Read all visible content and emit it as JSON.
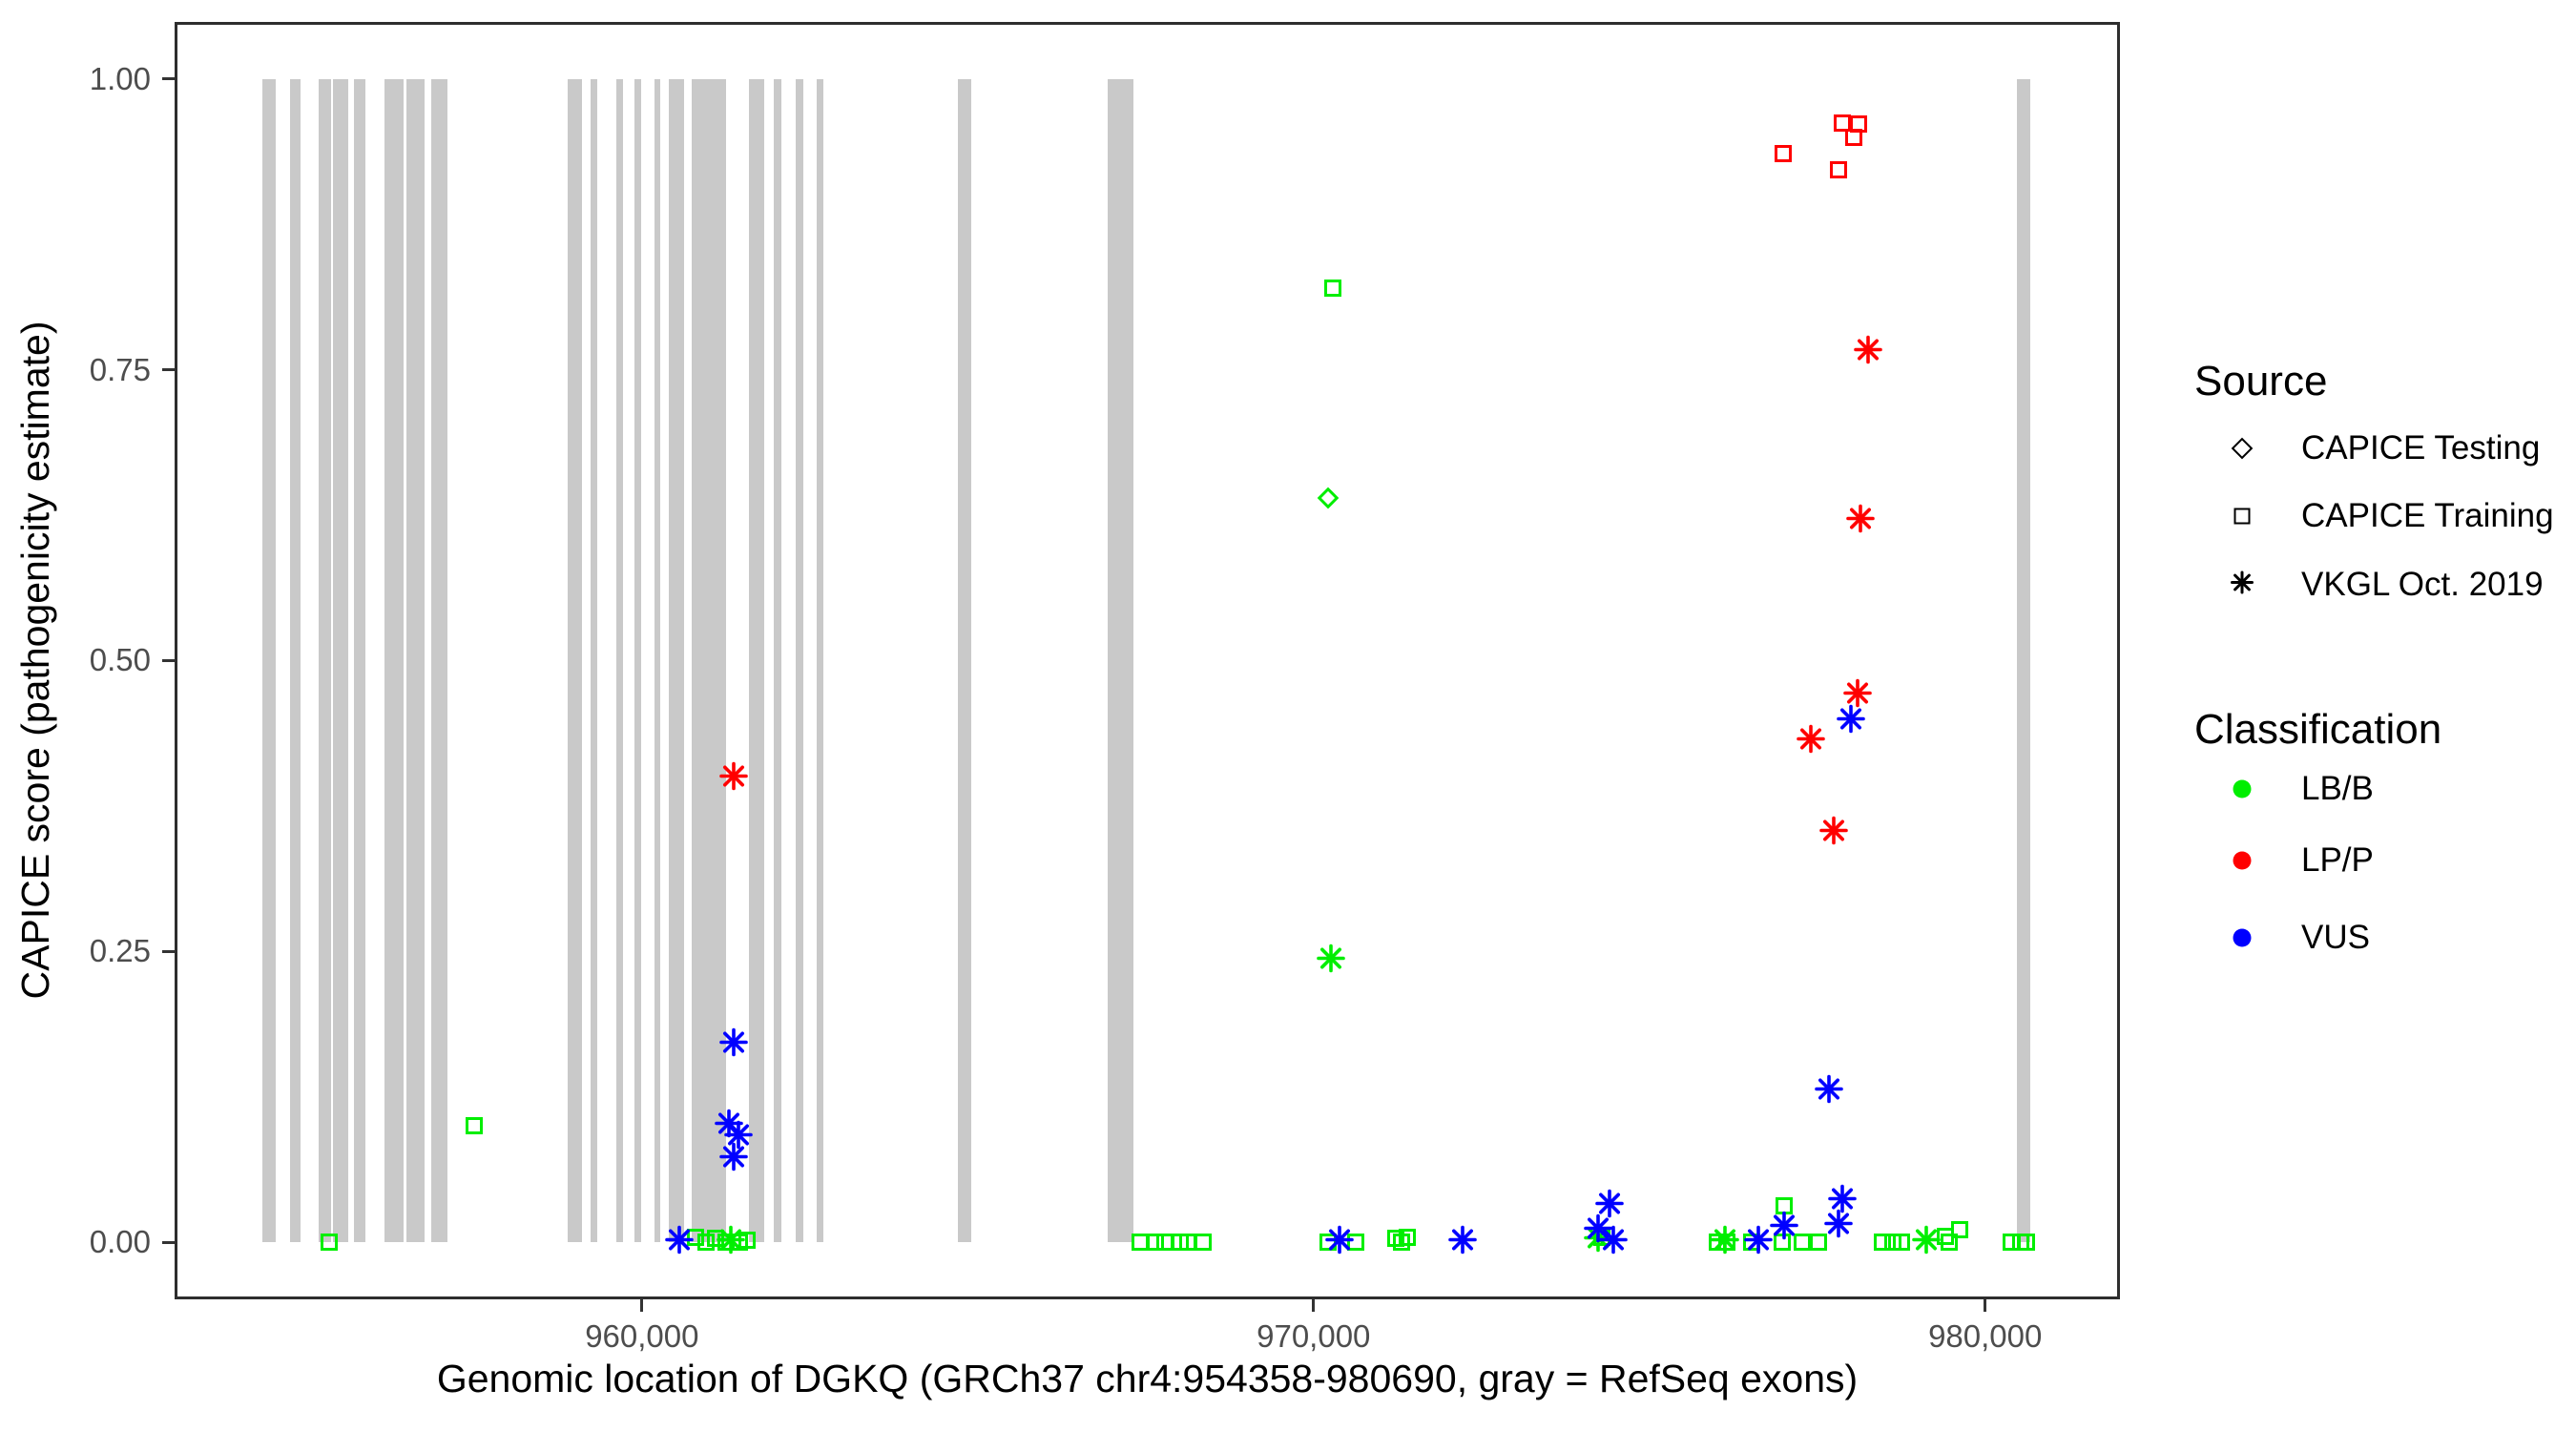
{
  "page": {
    "background": "#ffffff"
  },
  "colors": {
    "LB/B": "#00ee00",
    "LP/P": "#ff0000",
    "VUS": "#0000ff",
    "exon_gray": "#c9c9c9",
    "axis_line": "#2e2e2e",
    "tick_label": "#4d4d4d"
  },
  "legend": {
    "source": {
      "title": "Source",
      "items": [
        {
          "shape": "diamond",
          "label": "CAPICE Testing"
        },
        {
          "shape": "square",
          "label": "CAPICE Training"
        },
        {
          "shape": "asterisk",
          "label": "VKGL Oct. 2019"
        }
      ]
    },
    "classification": {
      "title": "Classification",
      "items": [
        {
          "label": "LB/B",
          "color": "#00ee00"
        },
        {
          "label": "LP/P",
          "color": "#ff0000"
        },
        {
          "label": "VUS",
          "color": "#0000ff"
        }
      ]
    }
  },
  "chart_data": {
    "type": "scatter",
    "title": "",
    "xlabel": "Genomic location of DGKQ (GRCh37 chr4:954358-980690, gray = RefSeq exons)",
    "ylabel": "CAPICE score (pathogenicity estimate)",
    "grid": false,
    "legend_position": "right",
    "x_domain": [
      953041,
      982007
    ],
    "y_domain": [
      -0.0492,
      1.0491
    ],
    "x_ticks": [
      {
        "value": 960000,
        "label": "960,000"
      },
      {
        "value": 970000,
        "label": "970,000"
      },
      {
        "value": 980000,
        "label": "980,000"
      }
    ],
    "y_ticks": [
      {
        "value": 0.0,
        "label": "0.00"
      },
      {
        "value": 0.25,
        "label": "0.25"
      },
      {
        "value": 0.5,
        "label": "0.50"
      },
      {
        "value": 0.75,
        "label": "0.75"
      },
      {
        "value": 1.0,
        "label": "1.00"
      }
    ],
    "exon_bars_bp": [
      [
        954350,
        954550
      ],
      [
        954760,
        954910
      ],
      [
        955180,
        955370
      ],
      [
        955400,
        955620
      ],
      [
        955710,
        955880
      ],
      [
        956160,
        956450
      ],
      [
        956500,
        956770
      ],
      [
        956860,
        957110
      ],
      [
        958900,
        959110
      ],
      [
        959230,
        959340
      ],
      [
        959620,
        959720
      ],
      [
        959890,
        959990
      ],
      [
        960180,
        960270
      ],
      [
        960400,
        960630
      ],
      [
        960740,
        961250
      ],
      [
        961590,
        961820
      ],
      [
        961960,
        962080
      ],
      [
        962290,
        962400
      ],
      [
        962600,
        962700
      ],
      [
        964710,
        964900
      ],
      [
        966940,
        967320
      ],
      [
        980470,
        980670
      ]
    ],
    "points": [
      {
        "bp": 955340,
        "score": 0.0,
        "source": "CAPICE Training",
        "classification": "LB/B"
      },
      {
        "bp": 957500,
        "score": 0.1,
        "source": "CAPICE Training",
        "classification": "LB/B"
      },
      {
        "bp": 960800,
        "score": 0.004,
        "source": "CAPICE Training",
        "classification": "LB/B"
      },
      {
        "bp": 960950,
        "score": 0.0,
        "source": "CAPICE Training",
        "classification": "LB/B"
      },
      {
        "bp": 961100,
        "score": 0.003,
        "source": "CAPICE Training",
        "classification": "LB/B"
      },
      {
        "bp": 961250,
        "score": 0.0,
        "source": "CAPICE Training",
        "classification": "LB/B"
      },
      {
        "bp": 961450,
        "score": 0.0,
        "source": "CAPICE Training",
        "classification": "LB/B"
      },
      {
        "bp": 961570,
        "score": 0.002,
        "source": "CAPICE Training",
        "classification": "LB/B"
      },
      {
        "bp": 961330,
        "score": 0.0,
        "source": "VKGL Oct. 2019",
        "classification": "LB/B"
      },
      {
        "bp": 967420,
        "score": 0.0,
        "source": "CAPICE Training",
        "classification": "LB/B"
      },
      {
        "bp": 967640,
        "score": 0.0,
        "source": "CAPICE Training",
        "classification": "LB/B"
      },
      {
        "bp": 967790,
        "score": 0.0,
        "source": "CAPICE Training",
        "classification": "LB/B"
      },
      {
        "bp": 968010,
        "score": 0.0,
        "source": "CAPICE Training",
        "classification": "LB/B"
      },
      {
        "bp": 968130,
        "score": 0.0,
        "source": "CAPICE Training",
        "classification": "LB/B"
      },
      {
        "bp": 968350,
        "score": 0.0,
        "source": "CAPICE Training",
        "classification": "LB/B"
      },
      {
        "bp": 970220,
        "score": 0.0,
        "source": "CAPICE Training",
        "classification": "LB/B"
      },
      {
        "bp": 970630,
        "score": 0.0,
        "source": "CAPICE Training",
        "classification": "LB/B"
      },
      {
        "bp": 970290,
        "score": 0.82,
        "source": "CAPICE Training",
        "classification": "LB/B"
      },
      {
        "bp": 970210,
        "score": 0.64,
        "source": "CAPICE Testing",
        "classification": "LB/B"
      },
      {
        "bp": 970260,
        "score": 0.242,
        "source": "VKGL Oct. 2019",
        "classification": "LB/B"
      },
      {
        "bp": 971230,
        "score": 0.003,
        "source": "CAPICE Training",
        "classification": "LB/B"
      },
      {
        "bp": 971310,
        "score": 0.0,
        "source": "CAPICE Training",
        "classification": "LB/B"
      },
      {
        "bp": 971390,
        "score": 0.004,
        "source": "CAPICE Training",
        "classification": "LB/B"
      },
      {
        "bp": 974230,
        "score": 0.002,
        "source": "VKGL Oct. 2019",
        "classification": "LB/B"
      },
      {
        "bp": 974300,
        "score": 0.004,
        "source": "CAPICE Training",
        "classification": "LB/B"
      },
      {
        "bp": 976010,
        "score": 0.0,
        "source": "CAPICE Training",
        "classification": "LB/B"
      },
      {
        "bp": 976160,
        "score": 0.0,
        "source": "CAPICE Training",
        "classification": "LB/B"
      },
      {
        "bp": 976120,
        "score": 0.0,
        "source": "VKGL Oct. 2019",
        "classification": "LB/B"
      },
      {
        "bp": 976520,
        "score": 0.0,
        "source": "CAPICE Training",
        "classification": "LB/B"
      },
      {
        "bp": 976980,
        "score": 0.0,
        "source": "CAPICE Training",
        "classification": "LB/B"
      },
      {
        "bp": 977010,
        "score": 0.031,
        "source": "CAPICE Training",
        "classification": "LB/B"
      },
      {
        "bp": 977280,
        "score": 0.0,
        "source": "CAPICE Training",
        "classification": "LB/B"
      },
      {
        "bp": 977520,
        "score": 0.0,
        "source": "CAPICE Training",
        "classification": "LB/B"
      },
      {
        "bp": 978470,
        "score": 0.0,
        "source": "CAPICE Training",
        "classification": "LB/B"
      },
      {
        "bp": 978620,
        "score": 0.0,
        "source": "CAPICE Training",
        "classification": "LB/B"
      },
      {
        "bp": 978760,
        "score": 0.0,
        "source": "CAPICE Training",
        "classification": "LB/B"
      },
      {
        "bp": 979130,
        "score": 0.0,
        "source": "VKGL Oct. 2019",
        "classification": "LB/B"
      },
      {
        "bp": 979410,
        "score": 0.005,
        "source": "CAPICE Training",
        "classification": "LB/B"
      },
      {
        "bp": 979470,
        "score": 0.0,
        "source": "CAPICE Training",
        "classification": "LB/B"
      },
      {
        "bp": 979620,
        "score": 0.011,
        "source": "CAPICE Training",
        "classification": "LB/B"
      },
      {
        "bp": 980390,
        "score": 0.0,
        "source": "CAPICE Training",
        "classification": "LB/B"
      },
      {
        "bp": 980530,
        "score": 0.0,
        "source": "CAPICE Training",
        "classification": "LB/B"
      },
      {
        "bp": 980620,
        "score": 0.0,
        "source": "CAPICE Training",
        "classification": "LB/B"
      },
      {
        "bp": 976998,
        "score": 0.936,
        "source": "CAPICE Training",
        "classification": "LP/P"
      },
      {
        "bp": 977877,
        "score": 0.962,
        "source": "CAPICE Training",
        "classification": "LP/P"
      },
      {
        "bp": 978118,
        "score": 0.961,
        "source": "CAPICE Training",
        "classification": "LP/P"
      },
      {
        "bp": 978047,
        "score": 0.95,
        "source": "CAPICE Training",
        "classification": "LP/P"
      },
      {
        "bp": 977820,
        "score": 0.922,
        "source": "CAPICE Training",
        "classification": "LP/P"
      },
      {
        "bp": 961370,
        "score": 0.399,
        "source": "VKGL Oct. 2019",
        "classification": "LP/P"
      },
      {
        "bp": 978250,
        "score": 0.765,
        "source": "VKGL Oct. 2019",
        "classification": "LP/P"
      },
      {
        "bp": 978150,
        "score": 0.62,
        "source": "VKGL Oct. 2019",
        "classification": "LP/P"
      },
      {
        "bp": 978100,
        "score": 0.47,
        "source": "VKGL Oct. 2019",
        "classification": "LP/P"
      },
      {
        "bp": 977400,
        "score": 0.431,
        "source": "VKGL Oct. 2019",
        "classification": "LP/P"
      },
      {
        "bp": 977750,
        "score": 0.352,
        "source": "VKGL Oct. 2019",
        "classification": "LP/P"
      },
      {
        "bp": 960560,
        "score": 0.0,
        "source": "VKGL Oct. 2019",
        "classification": "VUS"
      },
      {
        "bp": 961370,
        "score": 0.17,
        "source": "VKGL Oct. 2019",
        "classification": "VUS"
      },
      {
        "bp": 961300,
        "score": 0.1,
        "source": "VKGL Oct. 2019",
        "classification": "VUS"
      },
      {
        "bp": 961440,
        "score": 0.09,
        "source": "VKGL Oct. 2019",
        "classification": "VUS"
      },
      {
        "bp": 961370,
        "score": 0.071,
        "source": "VKGL Oct. 2019",
        "classification": "VUS"
      },
      {
        "bp": 970390,
        "score": 0.0,
        "source": "VKGL Oct. 2019",
        "classification": "VUS"
      },
      {
        "bp": 972220,
        "score": 0.0,
        "source": "VKGL Oct. 2019",
        "classification": "VUS"
      },
      {
        "bp": 974400,
        "score": 0.031,
        "source": "VKGL Oct. 2019",
        "classification": "VUS"
      },
      {
        "bp": 974230,
        "score": 0.01,
        "source": "VKGL Oct. 2019",
        "classification": "VUS"
      },
      {
        "bp": 974470,
        "score": 0.0,
        "source": "VKGL Oct. 2019",
        "classification": "VUS"
      },
      {
        "bp": 976630,
        "score": 0.0,
        "source": "VKGL Oct. 2019",
        "classification": "VUS"
      },
      {
        "bp": 977010,
        "score": 0.012,
        "source": "VKGL Oct. 2019",
        "classification": "VUS"
      },
      {
        "bp": 977680,
        "score": 0.13,
        "source": "VKGL Oct. 2019",
        "classification": "VUS"
      },
      {
        "bp": 977880,
        "score": 0.035,
        "source": "VKGL Oct. 2019",
        "classification": "VUS"
      },
      {
        "bp": 977820,
        "score": 0.014,
        "source": "VKGL Oct. 2019",
        "classification": "VUS"
      },
      {
        "bp": 978000,
        "score": 0.448,
        "source": "VKGL Oct. 2019",
        "classification": "VUS"
      }
    ]
  }
}
